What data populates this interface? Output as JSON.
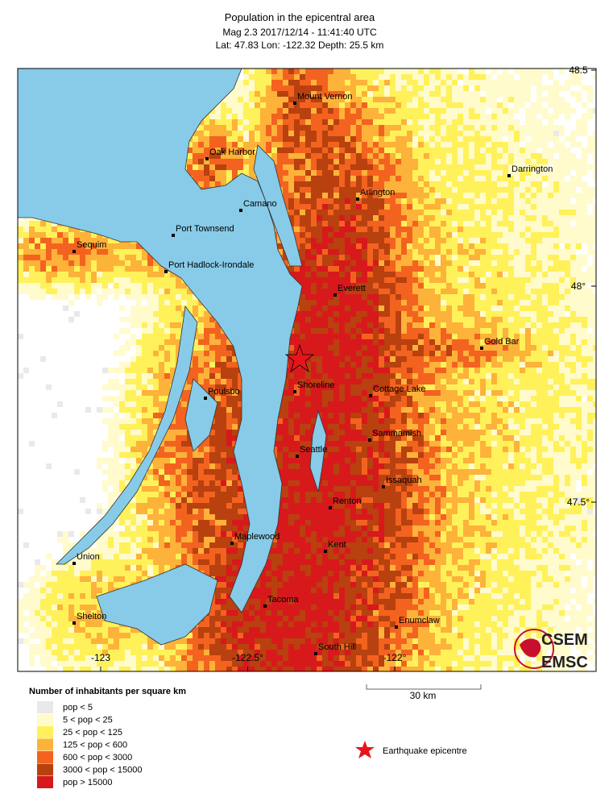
{
  "header": {
    "title": "Population in the epicentral area",
    "line2": "Mag 2.3  2017/12/14 - 11:41:40 UTC",
    "line3": "Lat: 47.83   Lon: -122.32     Depth:  25.5 km"
  },
  "map": {
    "lat_ticks": [
      48.5,
      {
        "value": 48,
        "label": "48°"
      },
      {
        "value": 47.5,
        "label": "47.5°"
      }
    ],
    "lon_ticks": [
      -123,
      {
        "value": -122.5,
        "label": "-122.5°"
      },
      {
        "value": -122,
        "label": "-122°"
      }
    ],
    "cities": [
      "Mount Vernon",
      "Oak Harbor",
      "Darrington",
      "Arlington",
      "Camano",
      "Port Townsend",
      "Sequim",
      "Port Hadlock-Irondale",
      "Everett",
      "Gold Bar",
      "Shoreline",
      "Cottage Lake",
      "Poulsbo",
      "Sammamish",
      "Seattle",
      "Issaquah",
      "Renton",
      "Maplewood",
      "Kent",
      "Union",
      "Tacoma",
      "Shelton",
      "Enumclaw",
      "South Hill"
    ]
  },
  "legend": {
    "title": "Number of inhabitants per square km",
    "items": [
      {
        "label": "pop < 5",
        "color": "#e9e9e9"
      },
      {
        "label": "5 < pop < 25",
        "color": "#fffbcc"
      },
      {
        "label": "25 < pop < 125",
        "color": "#fff15a"
      },
      {
        "label": "125 < pop < 600",
        "color": "#fdb23a"
      },
      {
        "label": "600 < pop < 3000",
        "color": "#f3631f"
      },
      {
        "label": "3000 < pop < 15000",
        "color": "#b8410f"
      },
      {
        "label": "pop > 15000",
        "color": "#d7191c"
      }
    ]
  },
  "scale_bar": "30 km",
  "epicentre_label": "Earthquake epicentre",
  "logo": [
    "CSEM",
    "EMSC"
  ]
}
